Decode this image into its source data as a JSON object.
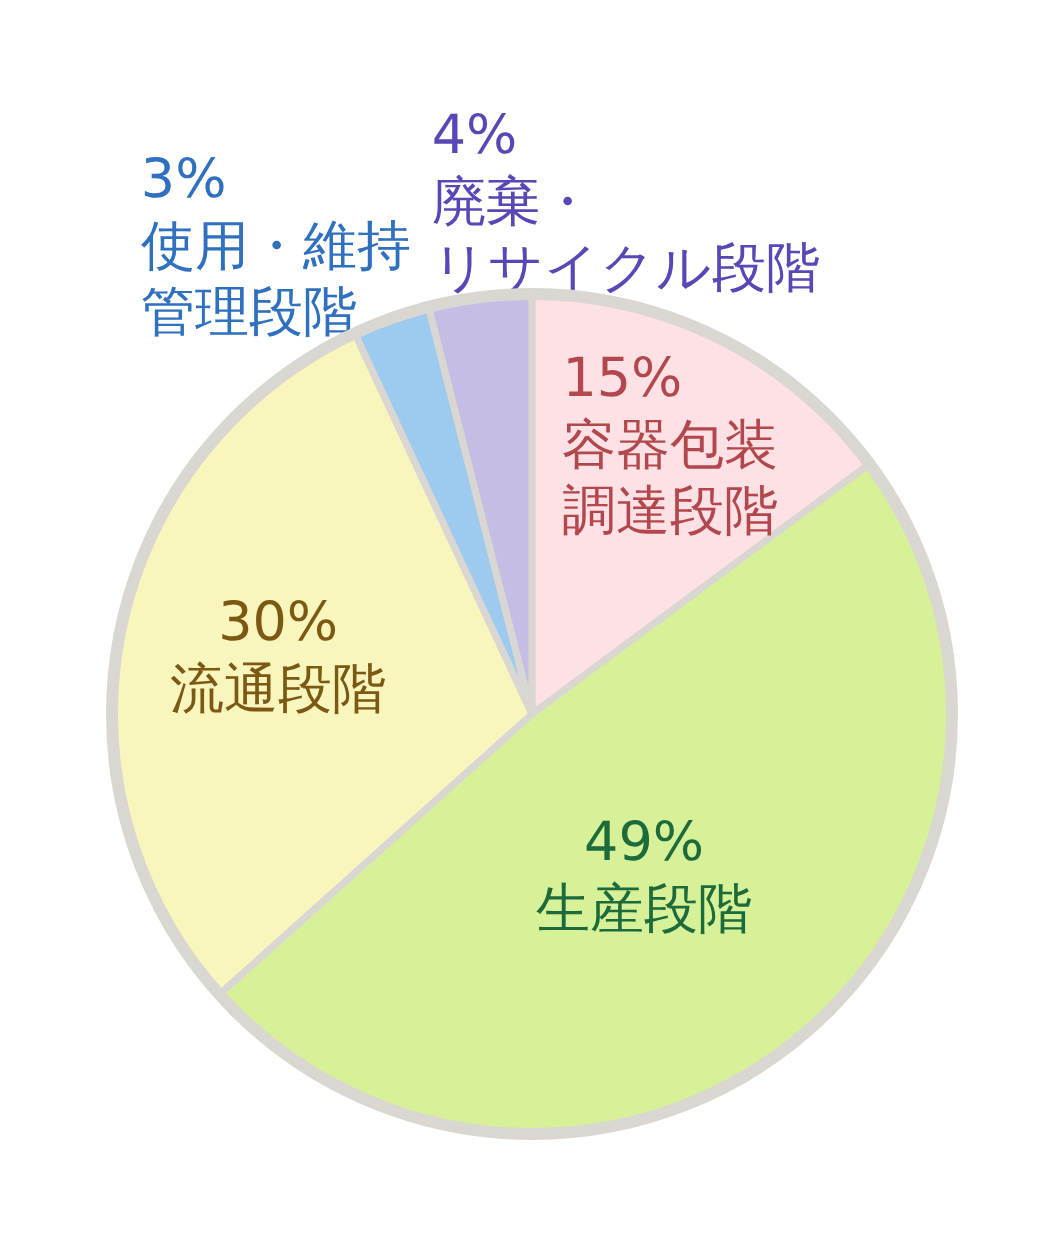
{
  "chart_data": {
    "type": "pie",
    "categories": [
      "容器包装調達段階",
      "生産段階",
      "流通段階",
      "使用・維持管理段階",
      "廃棄・リサイクル段階"
    ],
    "values": [
      15,
      49,
      30,
      3,
      4
    ],
    "value_labels": [
      "15%",
      "49%",
      "30%",
      "3%",
      "4%"
    ],
    "colors": [
      "#fde1e4",
      "#d6f198",
      "#f8f6bd",
      "#9dcbef",
      "#c6bde5"
    ]
  }
}
